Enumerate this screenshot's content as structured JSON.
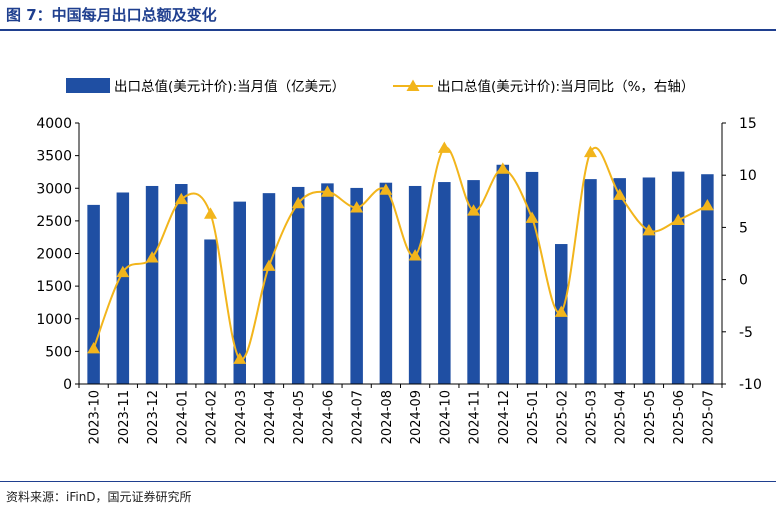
{
  "figure": {
    "title": "图 7：中国每月出口总额及变化",
    "source": "资料来源：iFinD，国元证券研究所"
  },
  "chart_data": {
    "type": "bar",
    "categories": [
      "2023-10",
      "2023-11",
      "2023-12",
      "2024-01",
      "2024-02",
      "2024-03",
      "2024-04",
      "2024-05",
      "2024-06",
      "2024-07",
      "2024-08",
      "2024-09",
      "2024-10",
      "2024-11",
      "2024-12",
      "2025-01",
      "2025-02",
      "2025-03",
      "2025-04",
      "2025-05",
      "2025-06",
      "2025-07"
    ],
    "series": [
      {
        "name": "出口总值(美元计价):当月值（亿美元）",
        "type": "bar",
        "axis": "left",
        "color": "#1f4fa3",
        "values": [
          2745,
          2935,
          3035,
          3065,
          2215,
          2795,
          2925,
          3020,
          3075,
          3005,
          3085,
          3035,
          3095,
          3125,
          3360,
          3250,
          2145,
          3140,
          3155,
          3165,
          3255,
          3215
        ]
      },
      {
        "name": "出口总值(美元计价):当月同比（%，右轴）",
        "type": "line",
        "axis": "right",
        "color": "#f2b51c",
        "values": [
          -6.6,
          0.7,
          2.1,
          7.7,
          6.3,
          -7.6,
          1.3,
          7.3,
          8.4,
          6.9,
          8.6,
          2.3,
          12.6,
          6.6,
          10.6,
          5.9,
          -3.1,
          12.2,
          8.1,
          4.7,
          5.7,
          7.1
        ]
      }
    ],
    "ylim_left": [
      0,
      4000
    ],
    "yticks_left": [
      0,
      500,
      1000,
      1500,
      2000,
      2500,
      3000,
      3500,
      4000
    ],
    "ylim_right": [
      -10,
      15
    ],
    "yticks_right": [
      -10,
      -5,
      0,
      5,
      10,
      15
    ],
    "grid": false,
    "legend_position": "top"
  }
}
